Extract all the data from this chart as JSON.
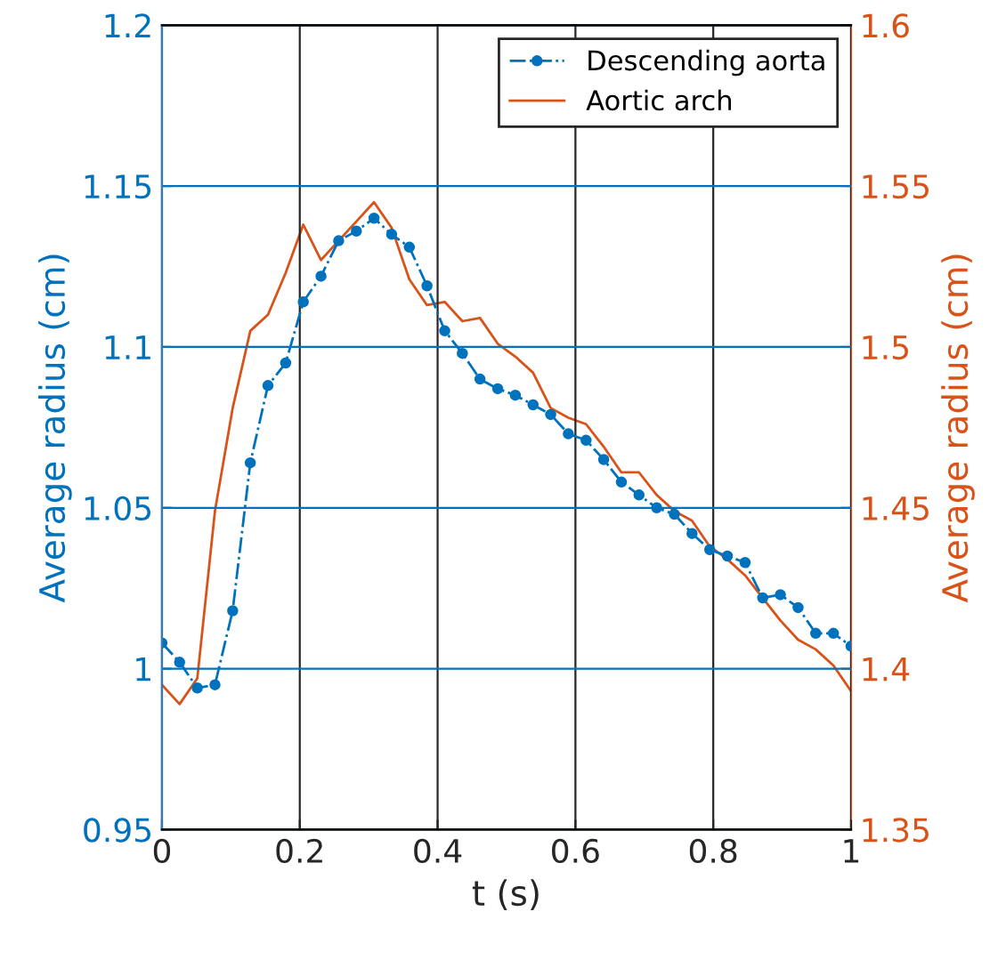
{
  "chart_data": {
    "type": "line",
    "xlabel": "t (s)",
    "ylabel": "Average radius (cm)",
    "y2label": "Average radius (cm)",
    "x": [
      0,
      0.0256,
      0.0513,
      0.0769,
      0.1026,
      0.1282,
      0.1538,
      0.1795,
      0.2051,
      0.2308,
      0.2564,
      0.2821,
      0.3077,
      0.3333,
      0.359,
      0.3846,
      0.4103,
      0.4359,
      0.4615,
      0.4872,
      0.5128,
      0.5385,
      0.5641,
      0.5897,
      0.6154,
      0.641,
      0.6667,
      0.6923,
      0.7179,
      0.7436,
      0.7692,
      0.7949,
      0.8205,
      0.8462,
      0.8718,
      0.8974,
      0.9231,
      0.9487,
      0.9744,
      1
    ],
    "series": [
      {
        "name": "Descending aorta",
        "color": "#0072bd",
        "axis": "y",
        "marker": "circle",
        "line_style": "dashdot",
        "values": [
          1.008,
          1.002,
          0.994,
          0.995,
          1.018,
          1.064,
          1.088,
          1.095,
          1.114,
          1.122,
          1.133,
          1.136,
          1.14,
          1.135,
          1.131,
          1.119,
          1.105,
          1.098,
          1.09,
          1.087,
          1.085,
          1.082,
          1.079,
          1.073,
          1.071,
          1.065,
          1.058,
          1.054,
          1.05,
          1.048,
          1.042,
          1.037,
          1.035,
          1.033,
          1.022,
          1.023,
          1.019,
          1.011,
          1.011,
          1.007
        ]
      },
      {
        "name": "Aortic arch",
        "color": "#d95319",
        "axis": "y2",
        "marker": "none",
        "line_style": "solid",
        "values": [
          1.395,
          1.389,
          1.397,
          1.449,
          1.481,
          1.505,
          1.51,
          1.523,
          1.538,
          1.527,
          1.533,
          1.539,
          1.545,
          1.537,
          1.521,
          1.513,
          1.514,
          1.508,
          1.509,
          1.501,
          1.497,
          1.492,
          1.481,
          1.478,
          1.476,
          1.469,
          1.461,
          1.461,
          1.454,
          1.449,
          1.446,
          1.438,
          1.434,
          1.429,
          1.422,
          1.415,
          1.409,
          1.406,
          1.401,
          1.393
        ]
      }
    ],
    "xlim": [
      0,
      1
    ],
    "xticks": [
      0,
      0.2,
      0.4,
      0.6,
      0.8,
      1
    ],
    "ylim": [
      0.95,
      1.2
    ],
    "yticks": [
      0.95,
      1,
      1.05,
      1.1,
      1.15,
      1.2
    ],
    "y2lim": [
      1.35,
      1.6
    ],
    "y2ticks": [
      1.35,
      1.4,
      1.45,
      1.5,
      1.55,
      1.6
    ],
    "grid": true,
    "legend": "top right"
  }
}
